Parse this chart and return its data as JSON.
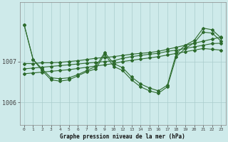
{
  "xlabel": "Graphe pression niveau de la mer (hPa)",
  "bg_color": "#ceeaea",
  "grid_color": "#aacccc",
  "line_color": "#2d6b2d",
  "x_ticks_actual": [
    0,
    1,
    2,
    3,
    4,
    5,
    6,
    7,
    8,
    9,
    10,
    12,
    13,
    14,
    15,
    16,
    17,
    18,
    19,
    20,
    21,
    22,
    23
  ],
  "x_tick_labels": [
    "0",
    "1",
    "2",
    "3",
    "4",
    "5",
    "6",
    "7",
    "8",
    "9",
    "10",
    "12",
    "13",
    "14",
    "15",
    "16",
    "17",
    "18",
    "19",
    "20",
    "21",
    "22",
    "23"
  ],
  "ylim": [
    1005.45,
    1008.45
  ],
  "yticks": [
    1006,
    1007
  ],
  "series": [
    {
      "x": [
        0,
        1,
        2,
        3,
        4,
        5,
        6,
        7,
        8,
        9,
        10,
        12,
        13,
        14,
        15,
        16,
        17,
        18,
        19,
        20,
        21,
        22,
        23
      ],
      "y": [
        1006.95,
        1006.95,
        1006.97,
        1006.97,
        1006.98,
        1007.0,
        1007.02,
        1007.05,
        1007.08,
        1007.1,
        1007.12,
        1007.15,
        1007.18,
        1007.2,
        1007.22,
        1007.25,
        1007.3,
        1007.35,
        1007.4,
        1007.45,
        1007.5,
        1007.55,
        1007.6
      ]
    },
    {
      "x": [
        0,
        1,
        2,
        3,
        4,
        5,
        6,
        7,
        8,
        9,
        10,
        12,
        13,
        14,
        15,
        16,
        17,
        18,
        19,
        20,
        21,
        22,
        23
      ],
      "y": [
        1006.82,
        1006.84,
        1006.86,
        1006.88,
        1006.9,
        1006.92,
        1006.94,
        1006.96,
        1006.98,
        1007.0,
        1007.02,
        1007.08,
        1007.12,
        1007.15,
        1007.18,
        1007.2,
        1007.25,
        1007.28,
        1007.32,
        1007.36,
        1007.4,
        1007.44,
        1007.45
      ]
    },
    {
      "x": [
        0,
        1,
        2,
        3,
        4,
        5,
        6,
        7,
        8,
        9,
        10,
        12,
        13,
        14,
        15,
        16,
        17,
        18,
        19,
        20,
        21,
        22,
        23
      ],
      "y": [
        1006.7,
        1006.72,
        1006.74,
        1006.76,
        1006.78,
        1006.8,
        1006.83,
        1006.86,
        1006.89,
        1006.92,
        1006.95,
        1007.0,
        1007.03,
        1007.06,
        1007.09,
        1007.12,
        1007.16,
        1007.2,
        1007.24,
        1007.28,
        1007.32,
        1007.3,
        1007.28
      ]
    },
    {
      "x": [
        0,
        1,
        2,
        3,
        4,
        5,
        6,
        7,
        8,
        9,
        10,
        12,
        13,
        14,
        15,
        16,
        17,
        18,
        19,
        20,
        21,
        22,
        23
      ],
      "y": [
        1007.9,
        1007.05,
        1006.82,
        1006.6,
        1006.58,
        1006.6,
        1006.68,
        1006.78,
        1006.88,
        1007.22,
        1006.95,
        1006.85,
        1006.62,
        1006.45,
        1006.35,
        1006.28,
        1006.42,
        1007.2,
        1007.4,
        1007.52,
        1007.82,
        1007.78,
        1007.58
      ]
    },
    {
      "x": [
        0,
        1,
        2,
        3,
        4,
        5,
        6,
        7,
        8,
        9,
        10,
        12,
        13,
        14,
        15,
        16,
        17,
        18,
        19,
        20,
        21,
        22,
        23
      ],
      "y": [
        1007.9,
        1007.05,
        1006.78,
        1006.55,
        1006.52,
        1006.55,
        1006.65,
        1006.75,
        1006.82,
        1007.18,
        1006.88,
        1006.78,
        1006.55,
        1006.38,
        1006.28,
        1006.22,
        1006.38,
        1007.12,
        1007.32,
        1007.46,
        1007.72,
        1007.7,
        1007.5
      ]
    }
  ]
}
